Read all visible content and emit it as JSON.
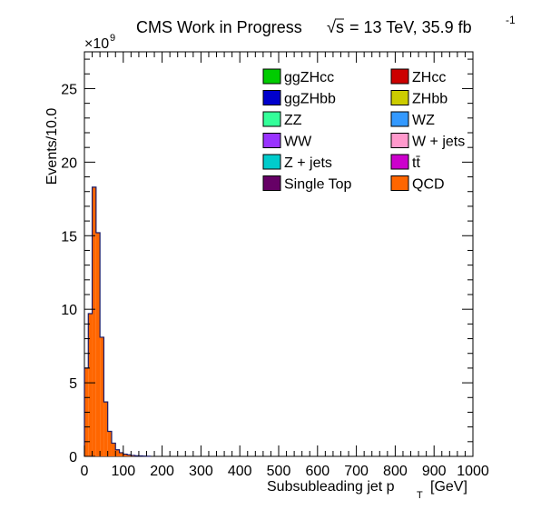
{
  "header": {
    "title_prefix": "CMS Work in Progress",
    "energy": "= 13 TeV, 35.9 fb",
    "sqrt_s": "s",
    "lumi_exp": "-1"
  },
  "chart_data": {
    "type": "bar",
    "xlabel": "Subsubleading jet p",
    "xlabel_sub": "T",
    "xlabel_unit": "[GeV]",
    "ylabel": "Events/10.0",
    "y_multiplier": "×10",
    "y_multiplier_exp": "9",
    "xlim": [
      0,
      1000
    ],
    "ylim": [
      0,
      27.5
    ],
    "x_ticks": [
      0,
      100,
      200,
      300,
      400,
      500,
      600,
      700,
      800,
      900,
      1000
    ],
    "y_ticks": [
      0,
      5,
      10,
      15,
      20,
      25
    ],
    "bin_edges": [
      0,
      10,
      20,
      30,
      40,
      50,
      60,
      70,
      80,
      90,
      100,
      110,
      120,
      130,
      140,
      150,
      160,
      170
    ],
    "series": [
      {
        "name": "QCD",
        "color": "#ff6600",
        "values": [
          6.0,
          9.7,
          18.3,
          15.2,
          8.1,
          3.7,
          1.7,
          0.9,
          0.45,
          0.25,
          0.15,
          0.1,
          0.06,
          0.04,
          0.03,
          0.02,
          0.01
        ]
      }
    ],
    "legend": {
      "placement": "top-right",
      "entries": [
        {
          "label": "ggZHcc",
          "color": "#00cc00"
        },
        {
          "label": "ZHcc",
          "color": "#cc0000"
        },
        {
          "label": "ggZHbb",
          "color": "#0000cc"
        },
        {
          "label": "ZHbb",
          "color": "#cccc00"
        },
        {
          "label": "ZZ",
          "color": "#33ff99"
        },
        {
          "label": "WZ",
          "color": "#3399ff"
        },
        {
          "label": "WW",
          "color": "#9933ff"
        },
        {
          "label": "W + jets",
          "color": "#ff99cc"
        },
        {
          "label": "Z + jets",
          "color": "#00cccc"
        },
        {
          "label": "tt̄",
          "color": "#cc00cc"
        },
        {
          "label": "Single Top",
          "color": "#660066"
        },
        {
          "label": "QCD",
          "color": "#ff6600"
        }
      ]
    }
  }
}
